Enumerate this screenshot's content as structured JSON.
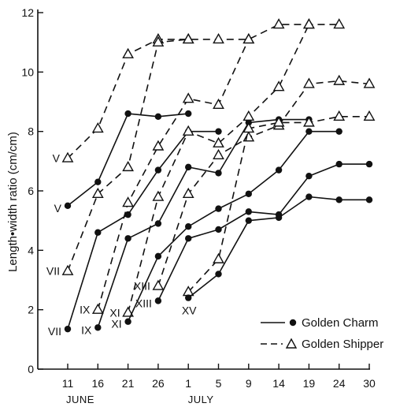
{
  "colors": {
    "ink": "#111111",
    "background": "#ffffff"
  },
  "chart_data": {
    "type": "line",
    "title": "",
    "xlabel": "",
    "ylabel": "Length•width ratio (cm/cm)",
    "ylim": [
      0,
      12
    ],
    "yticks": [
      0,
      2,
      4,
      6,
      8,
      10,
      12
    ],
    "x": [
      "11",
      "16",
      "21",
      "26",
      "1",
      "5",
      "9",
      "14",
      "19",
      "24",
      "30"
    ],
    "month_labels": [
      {
        "text": "JUNE",
        "at": "11"
      },
      {
        "text": "JULY",
        "at": "1"
      }
    ],
    "legend": {
      "position": "bottom-right",
      "entries": [
        {
          "name": "Golden Charm",
          "marker": "filled-circle",
          "line": "solid"
        },
        {
          "name": "Golden Shipper",
          "marker": "open-triangle",
          "line": "dashed"
        }
      ]
    },
    "series": [
      {
        "label": "V",
        "variety": "Golden Shipper",
        "line": "dashed",
        "marker": "open-triangle",
        "points": [
          [
            0,
            7.1
          ],
          [
            1,
            8.1
          ],
          [
            2,
            10.6
          ],
          [
            3,
            11.1
          ],
          [
            4,
            11.1
          ],
          [
            5,
            11.1
          ],
          [
            6,
            11.1
          ],
          [
            7,
            11.6
          ],
          [
            8,
            11.6
          ],
          [
            9,
            11.6
          ]
        ]
      },
      {
        "label": "V",
        "variety": "Golden Charm",
        "line": "solid",
        "marker": "filled-circle",
        "points": [
          [
            0,
            5.5
          ],
          [
            1,
            6.3
          ],
          [
            2,
            8.6
          ],
          [
            3,
            8.5
          ],
          [
            4,
            8.6
          ]
        ]
      },
      {
        "label": "VII",
        "variety": "Golden Shipper",
        "line": "dashed",
        "marker": "open-triangle",
        "points": [
          [
            0,
            3.3
          ],
          [
            1,
            5.9
          ],
          [
            2,
            6.8
          ],
          [
            3,
            11.0
          ],
          [
            4,
            11.1
          ]
        ]
      },
      {
        "label": "VII",
        "variety": "Golden Charm",
        "line": "solid",
        "marker": "filled-circle",
        "points": [
          [
            0,
            1.35
          ],
          [
            1,
            4.6
          ],
          [
            2,
            5.2
          ],
          [
            3,
            6.7
          ],
          [
            4,
            8.0
          ],
          [
            5,
            8.0
          ]
        ]
      },
      {
        "label": "IX",
        "variety": "Golden Shipper",
        "line": "dashed",
        "marker": "open-triangle",
        "points": [
          [
            1,
            2.0
          ],
          [
            2,
            5.6
          ],
          [
            3,
            7.5
          ],
          [
            4,
            9.1
          ],
          [
            5,
            8.9
          ],
          [
            6,
            11.1
          ]
        ]
      },
      {
        "label": "IX",
        "variety": "Golden Charm",
        "line": "solid",
        "marker": "filled-circle",
        "points": [
          [
            1,
            1.4
          ],
          [
            2,
            4.4
          ],
          [
            3,
            4.9
          ],
          [
            4,
            6.8
          ],
          [
            5,
            6.6
          ],
          [
            6,
            8.3
          ],
          [
            7,
            8.4
          ],
          [
            8,
            8.4
          ]
        ]
      },
      {
        "label": "XI",
        "variety": "Golden Shipper",
        "line": "dashed",
        "marker": "open-triangle",
        "points": [
          [
            2,
            1.9
          ],
          [
            3,
            5.8
          ],
          [
            4,
            8.0
          ],
          [
            5,
            7.6
          ],
          [
            6,
            8.5
          ],
          [
            7,
            9.5
          ],
          [
            8,
            11.6
          ]
        ]
      },
      {
        "label": "XI",
        "variety": "Golden Charm",
        "line": "solid",
        "marker": "filled-circle",
        "points": [
          [
            2,
            1.6
          ],
          [
            3,
            3.8
          ],
          [
            4,
            4.8
          ],
          [
            5,
            5.4
          ],
          [
            6,
            5.9
          ],
          [
            7,
            6.7
          ],
          [
            8,
            8.0
          ],
          [
            9,
            8.0
          ]
        ]
      },
      {
        "label": "XIII",
        "variety": "Golden Shipper",
        "line": "dashed",
        "marker": "open-triangle",
        "points": [
          [
            3,
            2.8
          ],
          [
            4,
            5.9
          ],
          [
            5,
            7.2
          ],
          [
            6,
            7.8
          ],
          [
            7,
            8.2
          ],
          [
            8,
            9.6
          ],
          [
            9,
            9.7
          ],
          [
            10,
            9.6
          ]
        ]
      },
      {
        "label": "XIII",
        "variety": "Golden Charm",
        "line": "solid",
        "marker": "filled-circle",
        "points": [
          [
            3,
            2.3
          ],
          [
            4,
            4.4
          ],
          [
            5,
            4.7
          ],
          [
            6,
            5.3
          ],
          [
            7,
            5.2
          ],
          [
            8,
            6.5
          ],
          [
            9,
            6.9
          ],
          [
            10,
            6.9
          ]
        ]
      },
      {
        "label": "XV",
        "variety": "Golden Shipper",
        "line": "dashed",
        "marker": "open-triangle",
        "points": [
          [
            4,
            2.6
          ],
          [
            5,
            3.7
          ],
          [
            6,
            8.1
          ],
          [
            7,
            8.3
          ],
          [
            8,
            8.3
          ],
          [
            9,
            8.5
          ],
          [
            10,
            8.5
          ]
        ]
      },
      {
        "label": "XV",
        "variety": "Golden Charm",
        "line": "solid",
        "marker": "filled-circle",
        "points": [
          [
            4,
            2.4
          ],
          [
            5,
            3.2
          ],
          [
            6,
            5.0
          ],
          [
            7,
            5.1
          ],
          [
            8,
            5.8
          ],
          [
            9,
            5.7
          ],
          [
            10,
            5.7
          ]
        ]
      }
    ]
  }
}
